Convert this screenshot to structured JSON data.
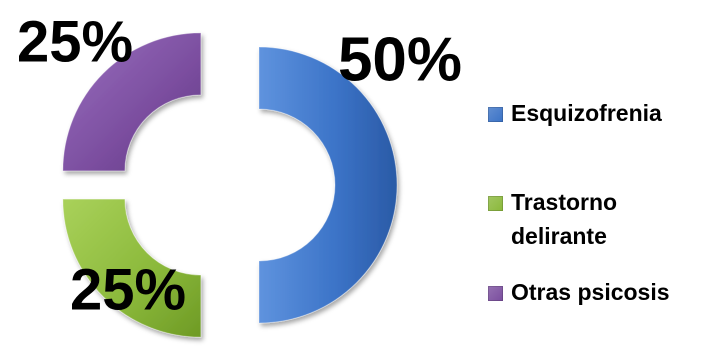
{
  "chart_data": {
    "type": "pie",
    "style": "exploded-doughnut-3d",
    "categories": [
      "Esquizofrenia",
      "Trastorno delirante",
      "Otras psicosis"
    ],
    "values": [
      50,
      25,
      25
    ],
    "data_labels": [
      "50%",
      "25%",
      "25%"
    ],
    "colors": [
      "#3a72c6",
      "#8ab83a",
      "#7a4d9e"
    ],
    "title": "",
    "legend_position": "right"
  }
}
